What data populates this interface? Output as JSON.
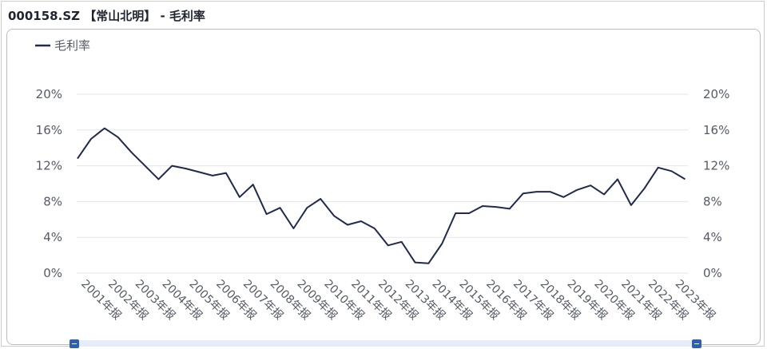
{
  "title": "000158.SZ 【常山北明】 - 毛利率",
  "colors": {
    "line": "#1f2a4d",
    "grid": "#e3e5ea",
    "text": "#555a66"
  },
  "chart_data": {
    "type": "line",
    "legend": {
      "entries": [
        "毛利率"
      ],
      "position": "top-left"
    },
    "y_axis": {
      "ticks": [
        "0%",
        "4%",
        "8%",
        "12%",
        "16%",
        "20%"
      ],
      "min": 0,
      "max": 20,
      "dual": true
    },
    "x_labels": [
      "2001年报",
      "2002年报",
      "2003年报",
      "2004年报",
      "2005年报",
      "2006年报",
      "2007年报",
      "2008年报",
      "2009年报",
      "2010年报",
      "2011年报",
      "2012年报",
      "2013年报",
      "2014年报",
      "2015年报",
      "2016年报",
      "2017年报",
      "2018年报",
      "2019年报",
      "2020年报",
      "2021年报",
      "2022年报",
      "2023年报"
    ],
    "series": [
      {
        "name": "毛利率",
        "points": [
          [
            0.0,
            12.8
          ],
          [
            0.5,
            15.0
          ],
          [
            1.0,
            16.2
          ],
          [
            1.5,
            15.2
          ],
          [
            2.0,
            13.5
          ],
          [
            2.5,
            12.0
          ],
          [
            3.0,
            10.5
          ],
          [
            3.5,
            12.0
          ],
          [
            4.0,
            11.7
          ],
          [
            4.5,
            11.3
          ],
          [
            5.0,
            10.9
          ],
          [
            5.5,
            11.2
          ],
          [
            6.0,
            8.5
          ],
          [
            6.5,
            9.9
          ],
          [
            7.0,
            6.6
          ],
          [
            7.5,
            7.3
          ],
          [
            8.0,
            5.0
          ],
          [
            8.5,
            7.3
          ],
          [
            9.0,
            8.3
          ],
          [
            9.5,
            6.4
          ],
          [
            10.0,
            5.4
          ],
          [
            10.5,
            5.8
          ],
          [
            11.0,
            5.0
          ],
          [
            11.5,
            3.1
          ],
          [
            12.0,
            3.5
          ],
          [
            12.5,
            1.2
          ],
          [
            13.0,
            1.1
          ],
          [
            13.5,
            3.3
          ],
          [
            14.0,
            6.7
          ],
          [
            14.5,
            6.7
          ],
          [
            15.0,
            7.5
          ],
          [
            15.5,
            7.4
          ],
          [
            16.0,
            7.2
          ],
          [
            16.5,
            8.9
          ],
          [
            17.0,
            9.1
          ],
          [
            17.5,
            9.1
          ],
          [
            18.0,
            8.5
          ],
          [
            18.5,
            9.3
          ],
          [
            19.0,
            9.8
          ],
          [
            19.5,
            8.8
          ],
          [
            20.0,
            10.5
          ],
          [
            20.5,
            7.6
          ],
          [
            21.0,
            9.5
          ],
          [
            21.5,
            11.8
          ],
          [
            22.0,
            11.4
          ],
          [
            22.5,
            10.5
          ]
        ]
      }
    ]
  }
}
